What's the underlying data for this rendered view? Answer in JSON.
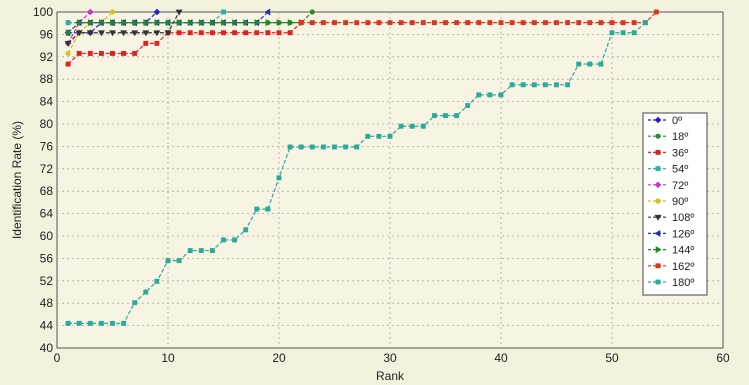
{
  "chart_data": {
    "type": "line",
    "xlabel": "Rank",
    "ylabel": "Identification Rate (%)",
    "xlim": [
      0,
      60
    ],
    "ylim": [
      40,
      100
    ],
    "xticks": [
      0,
      10,
      20,
      30,
      40,
      50,
      60
    ],
    "yticks": [
      40,
      44,
      48,
      52,
      56,
      60,
      64,
      68,
      72,
      76,
      80,
      84,
      88,
      92,
      96,
      100
    ],
    "grid": true,
    "legend_position": "right",
    "series": [
      {
        "name": "0º",
        "color": "#2222cc",
        "marker": "diamond",
        "x": [
          1,
          2,
          3,
          4,
          5,
          6,
          7,
          8,
          9
        ],
        "y": [
          96.3,
          96.3,
          96.3,
          98.1,
          98.1,
          98.1,
          98.1,
          98.1,
          100
        ]
      },
      {
        "name": "18º",
        "color": "#2a8a2a",
        "marker": "circle",
        "x": [
          1,
          2,
          3,
          4,
          5,
          6,
          7,
          8,
          9,
          10,
          11,
          12,
          13,
          14,
          15,
          16,
          17,
          18,
          19,
          20,
          21,
          22,
          23
        ],
        "y": [
          98.1,
          98.1,
          98.1,
          98.1,
          98.1,
          98.1,
          98.1,
          98.1,
          98.1,
          98.1,
          98.1,
          98.1,
          98.1,
          98.1,
          98.1,
          98.1,
          98.1,
          98.1,
          98.1,
          98.1,
          98.1,
          98.1,
          100
        ]
      },
      {
        "name": "36º",
        "color": "#dd2222",
        "marker": "square",
        "x": [
          1,
          2,
          3,
          4,
          5,
          6,
          7,
          8,
          9,
          10,
          11,
          12,
          13,
          14,
          15,
          16,
          17,
          18,
          19,
          20,
          21,
          22
        ],
        "y": [
          90.7,
          92.6,
          92.6,
          92.6,
          92.6,
          92.6,
          92.6,
          94.4,
          94.4,
          96.3,
          96.3,
          96.3,
          96.3,
          96.3,
          96.3,
          96.3,
          96.3,
          96.3,
          96.3,
          96.3,
          96.3,
          98.1
        ]
      },
      {
        "name": "54º",
        "color": "#2ab3aa",
        "marker": "square",
        "x": [
          1,
          2,
          3,
          4,
          5,
          6,
          7,
          8,
          9,
          10,
          11,
          12,
          13,
          14,
          15
        ],
        "y": [
          98.1,
          98.1,
          98.1,
          98.1,
          98.1,
          98.1,
          98.1,
          98.1,
          98.1,
          98.1,
          98.1,
          98.1,
          98.1,
          98.1,
          100
        ]
      },
      {
        "name": "72º",
        "color": "#cc33cc",
        "marker": "diamond",
        "x": [
          1,
          2,
          3
        ],
        "y": [
          94.4,
          98.1,
          100
        ]
      },
      {
        "name": "90º",
        "color": "#d4c21a",
        "marker": "circle",
        "x": [
          1,
          2,
          3,
          4,
          5
        ],
        "y": [
          92.6,
          96.3,
          98.1,
          98.1,
          100
        ]
      },
      {
        "name": "108º",
        "color": "#333333",
        "marker": "triangle-down",
        "x": [
          1,
          2,
          3,
          4,
          5,
          6,
          7,
          8,
          9,
          10,
          11
        ],
        "y": [
          94.4,
          96.3,
          96.3,
          96.3,
          96.3,
          96.3,
          96.3,
          96.3,
          96.3,
          96.3,
          100
        ]
      },
      {
        "name": "126º",
        "color": "#2233aa",
        "marker": "triangle-left",
        "x": [
          1,
          2,
          3,
          4,
          5,
          6,
          7,
          8,
          9,
          10,
          11,
          12,
          13,
          14,
          15,
          16,
          17,
          18,
          19
        ],
        "y": [
          96.3,
          98.1,
          98.1,
          98.1,
          98.1,
          98.1,
          98.1,
          98.1,
          98.1,
          98.1,
          98.1,
          98.1,
          98.1,
          98.1,
          98.1,
          98.1,
          98.1,
          98.1,
          100
        ]
      },
      {
        "name": "144º",
        "color": "#228822",
        "marker": "triangle-right",
        "x": [
          1,
          2,
          3,
          4,
          5,
          6,
          7,
          8,
          9,
          10,
          11,
          12,
          13,
          14,
          15,
          16,
          17,
          18,
          19,
          20,
          21,
          22
        ],
        "y": [
          96.3,
          98.1,
          98.1,
          98.1,
          98.1,
          98.1,
          98.1,
          98.1,
          98.1,
          98.1,
          98.1,
          98.1,
          98.1,
          98.1,
          98.1,
          98.1,
          98.1,
          98.1,
          98.1,
          98.1,
          98.1,
          98.1
        ]
      },
      {
        "name": "162º",
        "color": "#dd3322",
        "marker": "square",
        "x": [
          22,
          23,
          24,
          25,
          26,
          27,
          28,
          29,
          30,
          31,
          32,
          33,
          34,
          35,
          36,
          37,
          38,
          39,
          40,
          41,
          42,
          43,
          44,
          45,
          46,
          47,
          48,
          49,
          50,
          51,
          52,
          53,
          54
        ],
        "y": [
          98.1,
          98.1,
          98.1,
          98.1,
          98.1,
          98.1,
          98.1,
          98.1,
          98.1,
          98.1,
          98.1,
          98.1,
          98.1,
          98.1,
          98.1,
          98.1,
          98.1,
          98.1,
          98.1,
          98.1,
          98.1,
          98.1,
          98.1,
          98.1,
          98.1,
          98.1,
          98.1,
          98.1,
          98.1,
          98.1,
          98.1,
          98.1,
          100
        ]
      },
      {
        "name": "180º",
        "color": "#2aaa9a",
        "marker": "square",
        "x": [
          1,
          2,
          3,
          4,
          5,
          6,
          7,
          8,
          9,
          10,
          11,
          12,
          13,
          14,
          15,
          16,
          17,
          18,
          19,
          20,
          21,
          22,
          23,
          24,
          25,
          26,
          27,
          28,
          29,
          30,
          31,
          32,
          33,
          34,
          35,
          36,
          37,
          38,
          39,
          40,
          41,
          42,
          43,
          44,
          45,
          46,
          47,
          48,
          49,
          50,
          51,
          52,
          53
        ],
        "y": [
          44.4,
          44.4,
          44.4,
          44.4,
          44.4,
          44.4,
          48.1,
          50,
          51.9,
          55.6,
          55.6,
          57.4,
          57.4,
          57.4,
          59.3,
          59.3,
          61.1,
          64.8,
          64.8,
          70.4,
          75.9,
          75.9,
          75.9,
          75.9,
          75.9,
          75.9,
          75.9,
          77.8,
          77.8,
          77.8,
          79.6,
          79.6,
          79.6,
          81.5,
          81.5,
          81.5,
          83.3,
          85.2,
          85.2,
          85.2,
          87,
          87,
          87,
          87,
          87,
          87,
          90.7,
          90.7,
          90.7,
          96.3,
          96.3,
          96.3,
          98.1
        ]
      }
    ]
  }
}
